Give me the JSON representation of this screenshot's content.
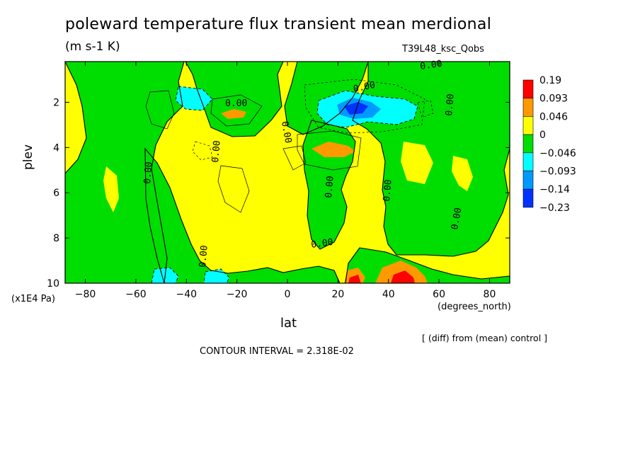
{
  "title": "poleward temperature flux transient mean merdional",
  "units": "(m s-1 K)",
  "run_label": "T39L48_ksc_Qobs",
  "note": "[ (diff) from (mean) control ]",
  "contour_interval": "CONTOUR INTERVAL = 2.318E-02",
  "chart_data": {
    "type": "heatmap",
    "xlabel": "lat",
    "x_units": "(degrees_north)",
    "ylabel": "plev",
    "y_units": "(x1E4 Pa)",
    "xlim": [
      -88,
      88
    ],
    "ylim": [
      10,
      0.2
    ],
    "x_ticks": [
      -80,
      -60,
      -40,
      -20,
      0,
      20,
      40,
      60,
      80
    ],
    "y_ticks": [
      2,
      4,
      6,
      8,
      10
    ],
    "colorbar": {
      "labels": [
        "0.19",
        "0.093",
        "0.046",
        "0",
        "-0.046",
        "-0.093",
        "-0.14",
        "-0.23"
      ],
      "colors": [
        "#ff0000",
        "#ff9900",
        "#ffff00",
        "#00dd00",
        "#00ffff",
        "#0099ff",
        "#0033ff"
      ]
    },
    "contour_labels": [
      "0.00"
    ],
    "features": [
      {
        "lat": 28,
        "plev": 2.3,
        "value": -0.2
      },
      {
        "lat": -42,
        "plev": 1.6,
        "value": -0.08
      },
      {
        "lat": 20,
        "plev": 4.0,
        "value": 0.06
      },
      {
        "lat": -22,
        "plev": 2.5,
        "value": 0.05
      },
      {
        "lat": 46,
        "plev": 9.8,
        "value": 0.19
      },
      {
        "lat": 27,
        "plev": 9.8,
        "value": 0.1
      },
      {
        "lat": -50,
        "plev": 9.7,
        "value": -0.07
      },
      {
        "lat": -33,
        "plev": 9.7,
        "value": -0.05
      }
    ]
  }
}
